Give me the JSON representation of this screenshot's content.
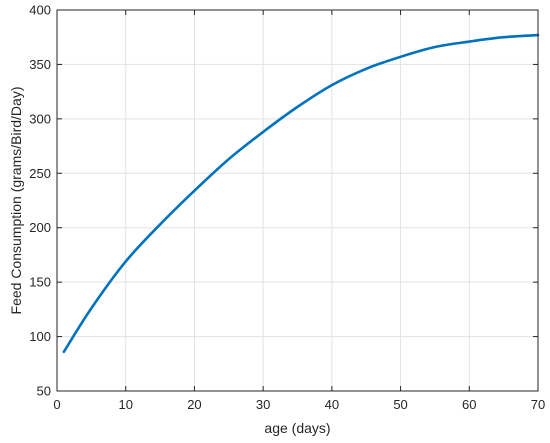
{
  "chart_data": {
    "type": "line",
    "title": "",
    "xlabel": "age (days)",
    "ylabel": "Feed Consumption (grams/Bird/Day)",
    "xlim": [
      0,
      70
    ],
    "ylim": [
      50,
      400
    ],
    "xticks": [
      0,
      10,
      20,
      30,
      40,
      50,
      60,
      70
    ],
    "yticks": [
      50,
      100,
      150,
      200,
      250,
      300,
      350,
      400
    ],
    "xtick_labels": [
      "0",
      "10",
      "20",
      "30",
      "40",
      "50",
      "60",
      "70"
    ],
    "ytick_labels": [
      "50",
      "100",
      "150",
      "200",
      "250",
      "300",
      "350",
      "400"
    ],
    "grid": true,
    "legend": "none",
    "series": [
      {
        "color": "#0072BD",
        "x": [
          1,
          5,
          10,
          15,
          20,
          25,
          30,
          35,
          40,
          45,
          50,
          55,
          60,
          65,
          70
        ],
        "y": [
          86,
          126,
          169,
          203,
          234,
          263,
          288,
          311,
          331,
          346,
          357,
          366,
          371,
          375,
          377
        ]
      }
    ]
  }
}
